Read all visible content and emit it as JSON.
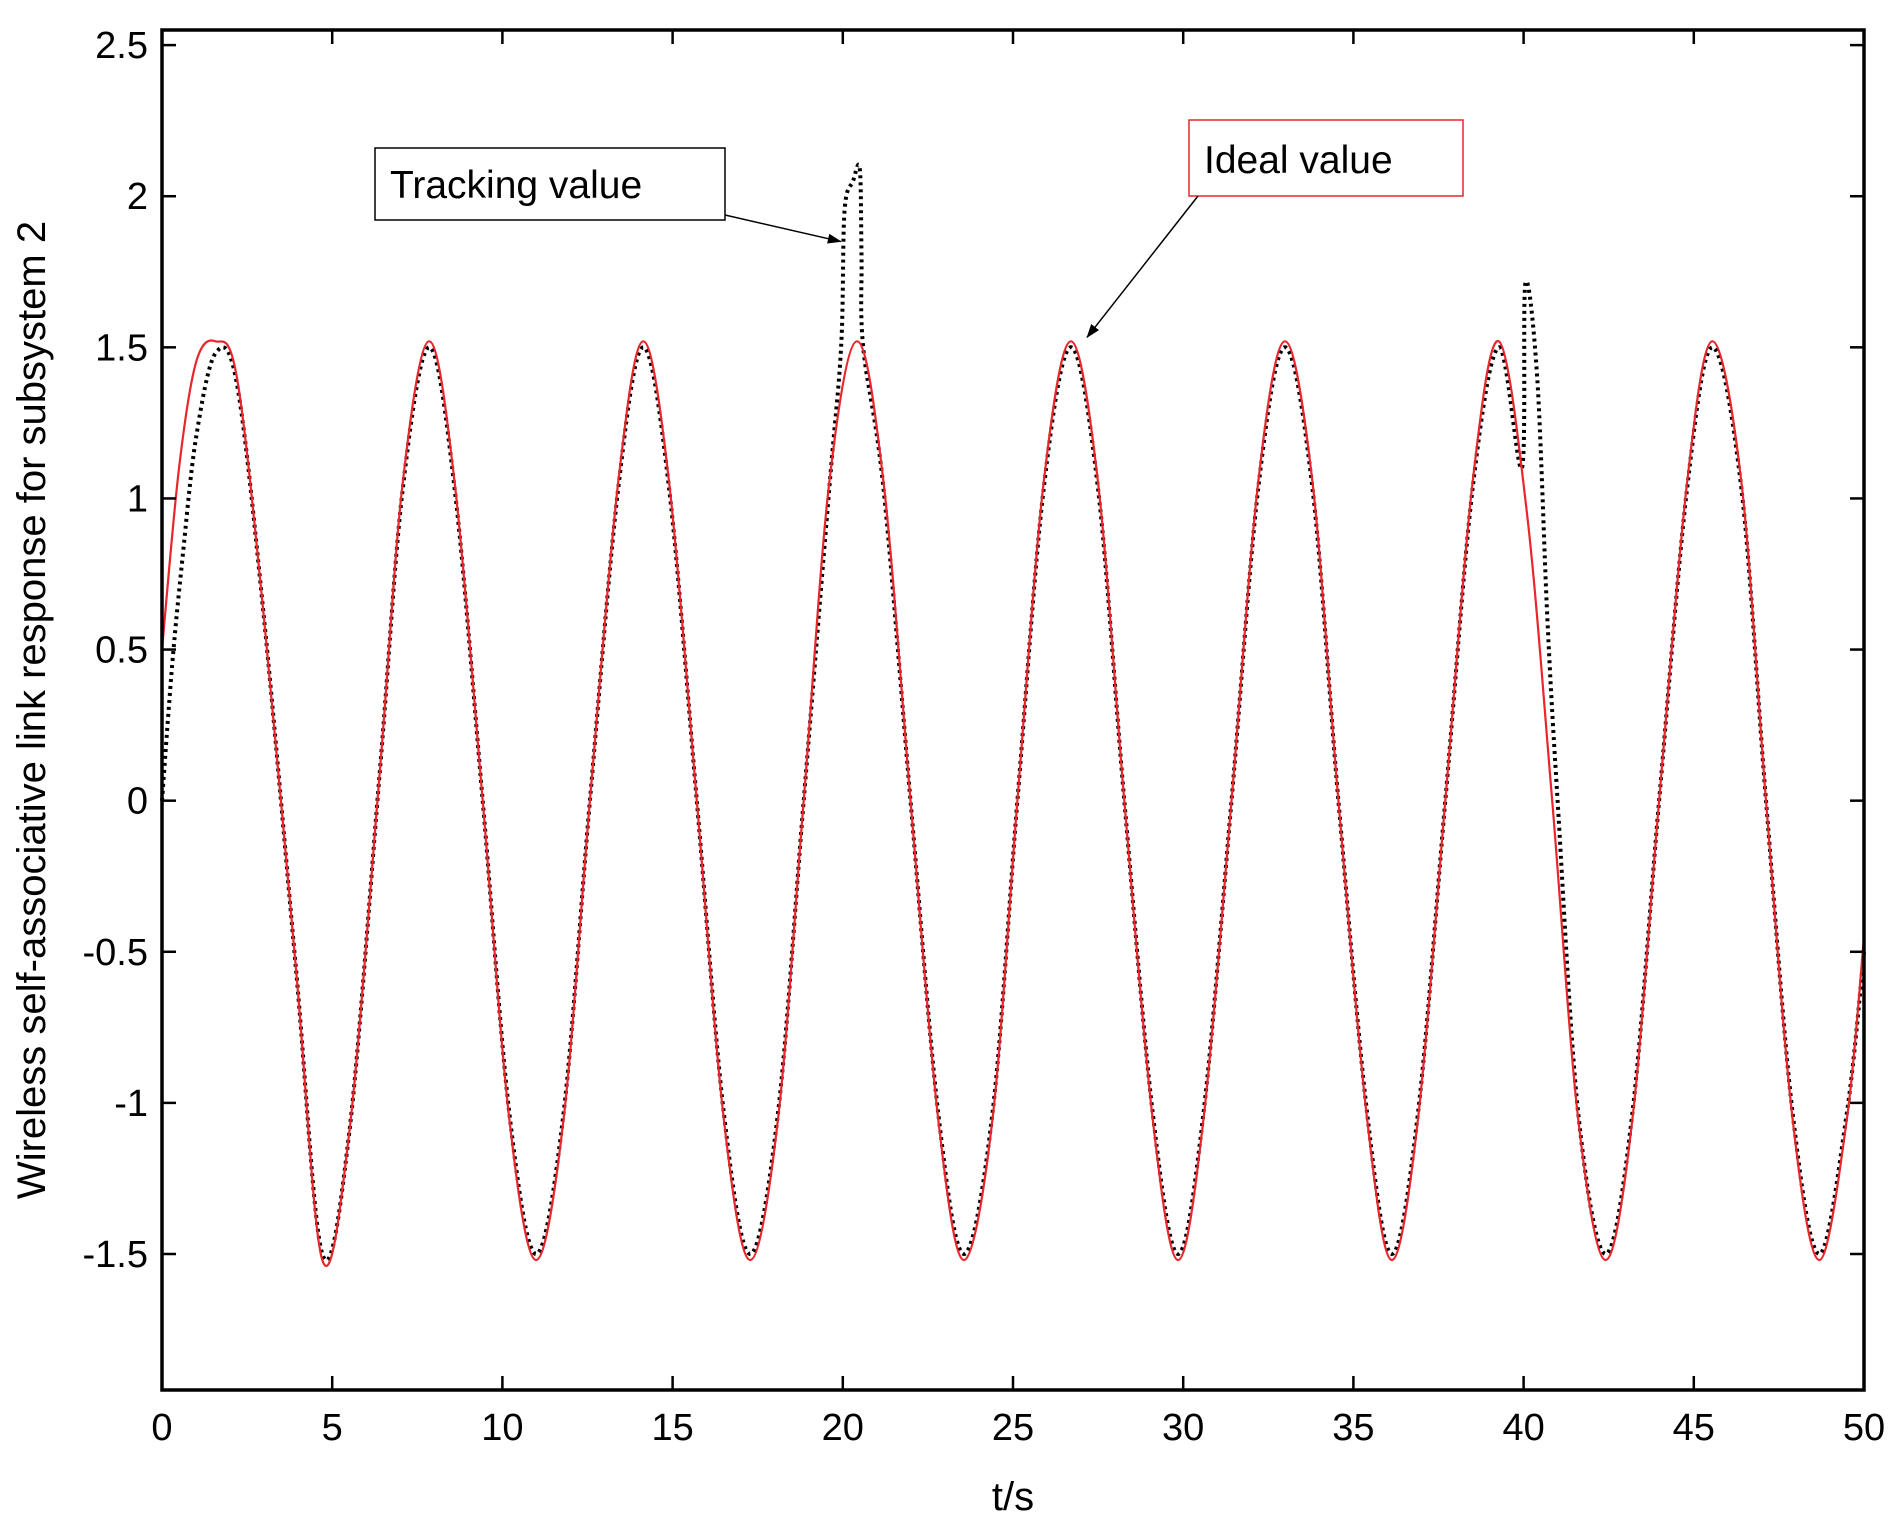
{
  "chart_data": {
    "type": "line",
    "title": "",
    "xlabel": "t/s",
    "ylabel": "Wireless self-associative link response for subsystem 2",
    "xlim": [
      0,
      50
    ],
    "ylim": [
      -1.95,
      2.55
    ],
    "xticks": [
      0,
      5,
      10,
      15,
      20,
      25,
      30,
      35,
      40,
      45,
      50
    ],
    "yticks": [
      -1.5,
      -1,
      -0.5,
      0,
      0.5,
      1,
      1.5,
      2,
      2.5
    ],
    "xtick_labels": [
      "0",
      "5",
      "10",
      "15",
      "20",
      "25",
      "30",
      "35",
      "40",
      "45",
      "50"
    ],
    "ytick_labels": [
      "-1.5",
      "-1",
      "-0.5",
      "0",
      "0.5",
      "1",
      "1.5",
      "2",
      "2.5"
    ],
    "grid": false,
    "series": [
      {
        "name": "Ideal value",
        "style": "solid",
        "color": "#e8262b",
        "x": [
          0,
          0.5,
          1,
          1.57,
          2.2,
          3,
          3.93,
          4.71,
          5.5,
          6.4,
          7.07,
          7.85,
          8.6,
          9.42,
          10.2,
          10.99,
          11.8,
          12.57,
          13.4,
          14.14,
          14.9,
          15.71,
          16.5,
          17.28,
          18.1,
          18.85,
          19.6,
          20.42,
          21.2,
          21.99,
          22.8,
          23.56,
          24.4,
          25.13,
          25.9,
          26.7,
          27.5,
          28.27,
          29.1,
          29.85,
          30.6,
          31.42,
          32.2,
          32.99,
          33.8,
          34.56,
          35.4,
          36.13,
          36.9,
          37.7,
          38.5,
          39.27,
          40.1,
          40.84,
          41.6,
          42.41,
          43.2,
          43.98,
          44.8,
          45.55,
          46.4,
          47.12,
          47.9,
          48.69,
          49.5,
          50
        ],
        "y": [
          0.5,
          1.1,
          1.45,
          1.52,
          1.4,
          0.6,
          -0.55,
          -1.52,
          -1.1,
          0.1,
          1.05,
          1.52,
          1.05,
          0.0,
          -1.05,
          -1.52,
          -1.05,
          0.0,
          1.05,
          1.52,
          1.05,
          0.0,
          -1.05,
          -1.52,
          -1.05,
          0.0,
          1.05,
          1.52,
          1.05,
          0.0,
          -1.05,
          -1.52,
          -1.05,
          0.0,
          1.05,
          1.52,
          1.05,
          0.0,
          -1.05,
          -1.52,
          -1.05,
          0.0,
          1.05,
          1.52,
          1.05,
          0.0,
          -1.05,
          -1.52,
          -1.05,
          0.0,
          1.05,
          1.52,
          0.95,
          0.0,
          -1.05,
          -1.52,
          -1.05,
          0.0,
          1.05,
          1.52,
          1.05,
          0.0,
          -1.05,
          -1.52,
          -1.05,
          -0.45
        ]
      },
      {
        "name": "Tracking value",
        "style": "dotted",
        "color": "#000000",
        "x": [
          0,
          0.3,
          0.6,
          1,
          1.57,
          2.2,
          3,
          3.93,
          4.71,
          5.5,
          6.4,
          7.07,
          7.85,
          8.6,
          9.42,
          10.2,
          10.99,
          11.8,
          12.57,
          13.4,
          14.14,
          14.9,
          15.71,
          16.5,
          17.28,
          18.1,
          18.85,
          19.6,
          19.95,
          20.05,
          20.3,
          20.5,
          20.55,
          20.6,
          21.2,
          21.99,
          22.8,
          23.56,
          24.4,
          25.13,
          25.9,
          26.7,
          27.5,
          28.27,
          29.1,
          29.85,
          30.6,
          31.42,
          32.2,
          32.99,
          33.8,
          34.56,
          35.4,
          36.13,
          36.9,
          37.7,
          38.5,
          39.27,
          39.95,
          40.05,
          40.4,
          40.7,
          41.0,
          41.6,
          42.41,
          43.2,
          43.98,
          44.8,
          45.55,
          46.4,
          47.12,
          47.9,
          48.69,
          49.5,
          50
        ],
        "y": [
          0.0,
          0.45,
          0.8,
          1.2,
          1.48,
          1.38,
          0.6,
          -0.55,
          -1.5,
          -1.1,
          0.1,
          1.03,
          1.5,
          1.03,
          0.0,
          -1.03,
          -1.5,
          -1.03,
          0.0,
          1.03,
          1.5,
          1.03,
          0.0,
          -1.03,
          -1.5,
          -1.03,
          0.0,
          1.03,
          1.5,
          1.95,
          2.05,
          2.09,
          1.8,
          1.5,
          1.03,
          0.0,
          -1.03,
          -1.5,
          -1.03,
          0.0,
          1.03,
          1.5,
          1.03,
          0.0,
          -1.03,
          -1.5,
          -1.03,
          0.0,
          1.03,
          1.5,
          1.03,
          0.0,
          -1.03,
          -1.5,
          -1.03,
          0.0,
          1.03,
          1.5,
          1.1,
          1.71,
          1.4,
          0.6,
          0.0,
          -1.03,
          -1.5,
          -1.03,
          0.0,
          1.03,
          1.5,
          1.03,
          0.0,
          -1.03,
          -1.5,
          -1.03,
          -0.5
        ]
      }
    ],
    "annotations": [
      {
        "text": "Tracking value",
        "box_color": "#000000",
        "arrow_to": [
          20.0,
          1.85
        ]
      },
      {
        "text": "Ideal value",
        "box_color": "#e8262b",
        "arrow_to": [
          27.0,
          1.52
        ]
      }
    ]
  }
}
